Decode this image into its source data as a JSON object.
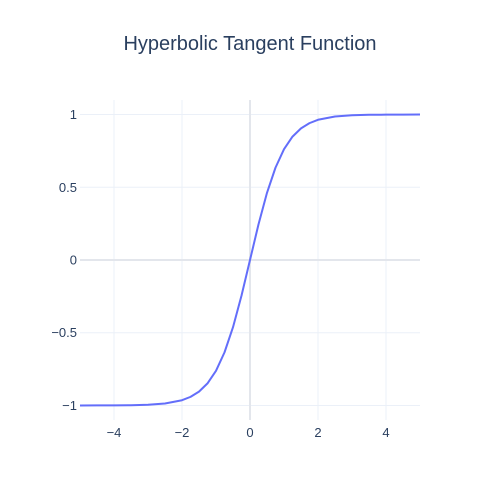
{
  "chart_data": {
    "type": "line",
    "title": "Hyperbolic Tangent Function",
    "xlabel": "",
    "ylabel": "",
    "xlim": [
      -5,
      5
    ],
    "ylim": [
      -1.1,
      1.1
    ],
    "x_ticks": [
      -4,
      -2,
      0,
      2,
      4
    ],
    "x_tick_labels": [
      "−4",
      "−2",
      "0",
      "2",
      "4"
    ],
    "y_ticks": [
      -1,
      -0.5,
      0,
      0.5,
      1
    ],
    "y_tick_labels": [
      "−1",
      "−0.5",
      "0",
      "0.5",
      "1"
    ],
    "grid": true,
    "legend": "none",
    "colors": {
      "line": "#636efa",
      "grid": "#ebf0f8",
      "zeroline": "#e3e6ec",
      "text": "#2a3f5f"
    },
    "series": [
      {
        "x": [
          -5,
          -4.5,
          -4,
          -3.5,
          -3,
          -2.5,
          -2,
          -1.75,
          -1.5,
          -1.25,
          -1,
          -0.75,
          -0.5,
          -0.25,
          0,
          0.25,
          0.5,
          0.75,
          1,
          1.25,
          1.5,
          1.75,
          2,
          2.5,
          3,
          3.5,
          4,
          4.5,
          5
        ],
        "y": [
          -0.9999,
          -0.9998,
          -0.9993,
          -0.9982,
          -0.9951,
          -0.9866,
          -0.964,
          -0.941,
          -0.9051,
          -0.8483,
          -0.7616,
          -0.6351,
          -0.4621,
          -0.2449,
          0,
          0.2449,
          0.4621,
          0.6351,
          0.7616,
          0.8483,
          0.9051,
          0.941,
          0.964,
          0.9866,
          0.9951,
          0.9982,
          0.9993,
          0.9998,
          0.9999
        ]
      }
    ]
  }
}
